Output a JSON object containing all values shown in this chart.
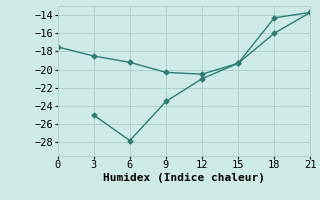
{
  "line1_x": [
    0,
    3,
    6,
    9,
    12,
    15,
    18,
    21
  ],
  "line1_y": [
    -17.5,
    -18.5,
    -19.2,
    -20.3,
    -20.5,
    -19.3,
    -16.0,
    -13.7
  ],
  "line2_x": [
    3,
    6,
    9,
    12,
    15,
    18,
    21
  ],
  "line2_y": [
    -25.0,
    -27.8,
    -23.5,
    -21.0,
    -19.3,
    -14.3,
    -13.7
  ],
  "line_color": "#2e7d72",
  "marker": "D",
  "markersize": 2.5,
  "linewidth": 1.0,
  "xlabel": "Humidex (Indice chaleur)",
  "xlim": [
    0,
    21
  ],
  "ylim": [
    -29.5,
    -13.0
  ],
  "xticks": [
    0,
    3,
    6,
    9,
    12,
    15,
    18,
    21
  ],
  "yticks": [
    -28,
    -26,
    -24,
    -22,
    -20,
    -18,
    -16,
    -14
  ],
  "bg_color": "#ceeae6",
  "grid_color": "#b0d0cc",
  "font_family": "monospace",
  "xlabel_fontsize": 8,
  "tick_fontsize": 7.5
}
